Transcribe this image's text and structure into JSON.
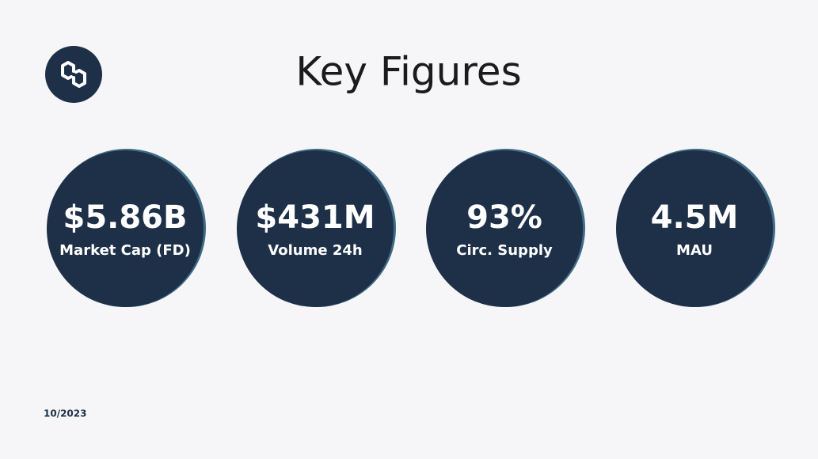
{
  "header": {
    "title": "Key Figures"
  },
  "figures": [
    {
      "value": "$5.86B",
      "label": "Market Cap (FD)"
    },
    {
      "value": "$431M",
      "label": "Volume 24h"
    },
    {
      "value": "93%",
      "label": "Circ. Supply"
    },
    {
      "value": "4.5M",
      "label": "MAU"
    }
  ],
  "footer": {
    "date": "10/2023"
  }
}
